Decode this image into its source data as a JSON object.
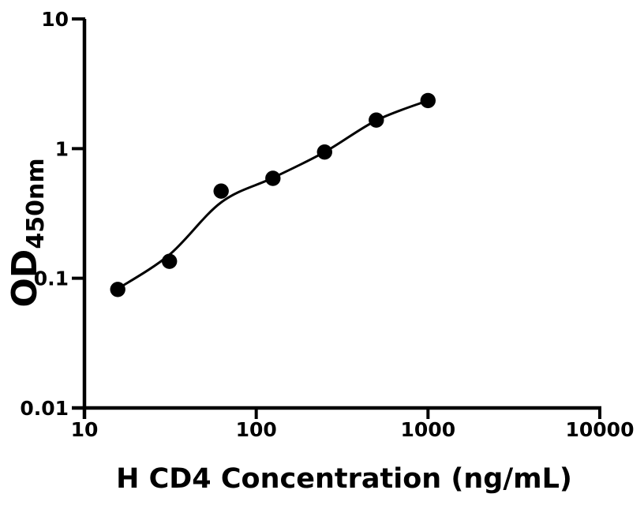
{
  "figure": {
    "background": "#ffffff"
  },
  "chart_data": {
    "type": "scatter",
    "title": "",
    "xlabel": "H CD4 Concentration (ng/mL)",
    "ylabel_main": "OD",
    "ylabel_sub": "450nm",
    "x_scale": "log",
    "y_scale": "log",
    "xlim": [
      10,
      10000
    ],
    "ylim": [
      0.01,
      10
    ],
    "grid": false,
    "legend": null,
    "x_ticks": [
      {
        "value": 10,
        "label": "10"
      },
      {
        "value": 100,
        "label": "100"
      },
      {
        "value": 1000,
        "label": "1000"
      },
      {
        "value": 10000,
        "label": "10000"
      }
    ],
    "y_ticks": [
      {
        "value": 10,
        "label": "10"
      },
      {
        "value": 1,
        "label": "1"
      },
      {
        "value": 0.1,
        "label": "0.1"
      },
      {
        "value": 0.01,
        "label": "0.01"
      }
    ],
    "points": [
      {
        "x": 15.625,
        "y": 0.082
      },
      {
        "x": 31.25,
        "y": 0.135
      },
      {
        "x": 62.5,
        "y": 0.47
      },
      {
        "x": 125,
        "y": 0.59
      },
      {
        "x": 250,
        "y": 0.94
      },
      {
        "x": 500,
        "y": 1.66
      },
      {
        "x": 1000,
        "y": 2.35
      }
    ],
    "fit_curve": [
      {
        "x": 15.625,
        "y": 0.083
      },
      {
        "x": 31.25,
        "y": 0.152
      },
      {
        "x": 62.5,
        "y": 0.385
      },
      {
        "x": 125,
        "y": 0.595
      },
      {
        "x": 250,
        "y": 0.94
      },
      {
        "x": 500,
        "y": 1.65
      },
      {
        "x": 1000,
        "y": 2.35
      }
    ],
    "colors": {
      "marker": "#000000",
      "line": "#000000",
      "axis": "#000000",
      "text": "#000000",
      "background": "#ffffff"
    }
  }
}
